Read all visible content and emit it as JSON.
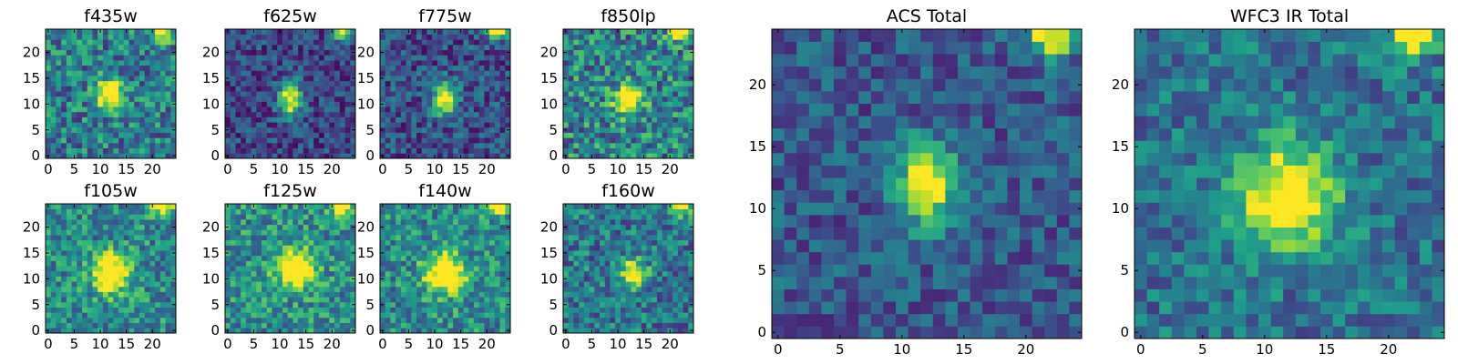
{
  "figure": {
    "colormap": "viridis",
    "pixel_grid": [
      25,
      25
    ]
  },
  "chart_data": [
    {
      "type": "heatmap",
      "title": "f435w",
      "xticks": [
        "0",
        "5",
        "10",
        "15",
        "20"
      ],
      "yticks": [
        "0",
        "5",
        "10",
        "15",
        "20"
      ],
      "xlim": [
        0,
        25
      ],
      "ylim": [
        0,
        25
      ],
      "source_x": 12,
      "source_y": 12,
      "source_rx": 1.8,
      "source_ry": 2.0,
      "noise": 0.28,
      "base": 0.42,
      "seed": 11
    },
    {
      "type": "heatmap",
      "title": "f625w",
      "xticks": [
        "0",
        "5",
        "10",
        "15",
        "20"
      ],
      "yticks": [
        "0",
        "5",
        "10",
        "15",
        "20"
      ],
      "xlim": [
        0,
        25
      ],
      "ylim": [
        0,
        25
      ],
      "source_x": 12,
      "source_y": 11,
      "source_rx": 1.5,
      "source_ry": 2.4,
      "noise": 0.2,
      "base": 0.22,
      "seed": 23
    },
    {
      "type": "heatmap",
      "title": "f775w",
      "xticks": [
        "0",
        "5",
        "10",
        "15",
        "20"
      ],
      "yticks": [
        "0",
        "5",
        "10",
        "15",
        "20"
      ],
      "xlim": [
        0,
        25
      ],
      "ylim": [
        0,
        25
      ],
      "source_x": 12,
      "source_y": 11,
      "source_rx": 1.6,
      "source_ry": 2.2,
      "noise": 0.22,
      "base": 0.25,
      "seed": 37
    },
    {
      "type": "heatmap",
      "title": "f850lp",
      "xticks": [
        "0",
        "5",
        "10",
        "15",
        "20"
      ],
      "yticks": [
        "0",
        "5",
        "10",
        "15",
        "20"
      ],
      "xlim": [
        0,
        25
      ],
      "ylim": [
        0,
        25
      ],
      "source_x": 12,
      "source_y": 11,
      "source_rx": 1.8,
      "source_ry": 2.0,
      "noise": 0.3,
      "base": 0.45,
      "seed": 41
    },
    {
      "type": "heatmap",
      "title": "f105w",
      "xticks": [
        "0",
        "5",
        "10",
        "15",
        "20"
      ],
      "yticks": [
        "0",
        "5",
        "10",
        "15",
        "20"
      ],
      "xlim": [
        0,
        25
      ],
      "ylim": [
        0,
        25
      ],
      "source_x": 12,
      "source_y": 11,
      "source_rx": 2.4,
      "source_ry": 2.6,
      "noise": 0.25,
      "base": 0.48,
      "seed": 53
    },
    {
      "type": "heatmap",
      "title": "f125w",
      "xticks": [
        "0",
        "5",
        "10",
        "15",
        "20"
      ],
      "yticks": [
        "0",
        "5",
        "10",
        "15",
        "20"
      ],
      "xlim": [
        0,
        25
      ],
      "ylim": [
        0,
        25
      ],
      "source_x": 13,
      "source_y": 12,
      "source_rx": 2.6,
      "source_ry": 2.4,
      "noise": 0.25,
      "base": 0.5,
      "seed": 67
    },
    {
      "type": "heatmap",
      "title": "f140w",
      "xticks": [
        "0",
        "5",
        "10",
        "15",
        "20"
      ],
      "yticks": [
        "0",
        "5",
        "10",
        "15",
        "20"
      ],
      "xlim": [
        0,
        25
      ],
      "ylim": [
        0,
        25
      ],
      "source_x": 12,
      "source_y": 11,
      "source_rx": 2.6,
      "source_ry": 2.6,
      "noise": 0.25,
      "base": 0.48,
      "seed": 79
    },
    {
      "type": "heatmap",
      "title": "f160w",
      "xticks": [
        "0",
        "5",
        "10",
        "15",
        "20"
      ],
      "yticks": [
        "0",
        "5",
        "10",
        "15",
        "20"
      ],
      "xlim": [
        0,
        25
      ],
      "ylim": [
        0,
        25
      ],
      "source_x": 13,
      "source_y": 11,
      "source_rx": 1.6,
      "source_ry": 1.8,
      "noise": 0.25,
      "base": 0.4,
      "seed": 83
    },
    {
      "type": "heatmap",
      "title": "ACS Total",
      "xticks": [
        "0",
        "5",
        "10",
        "15",
        "20"
      ],
      "yticks": [
        "0",
        "5",
        "10",
        "15",
        "20"
      ],
      "xlim": [
        0,
        25
      ],
      "ylim": [
        0,
        25
      ],
      "source_x": 12,
      "source_y": 12,
      "source_rx": 1.6,
      "source_ry": 2.2,
      "noise": 0.18,
      "base": 0.28,
      "seed": 97
    },
    {
      "type": "heatmap",
      "title": "WFC3 IR Total",
      "xticks": [
        "0",
        "5",
        "10",
        "15",
        "20"
      ],
      "yticks": [
        "0",
        "5",
        "10",
        "15",
        "20"
      ],
      "xlim": [
        0,
        25
      ],
      "ylim": [
        0,
        25
      ],
      "source_x": 12,
      "source_y": 11,
      "source_rx": 2.6,
      "source_ry": 2.8,
      "noise": 0.2,
      "base": 0.38,
      "seed": 101
    }
  ]
}
